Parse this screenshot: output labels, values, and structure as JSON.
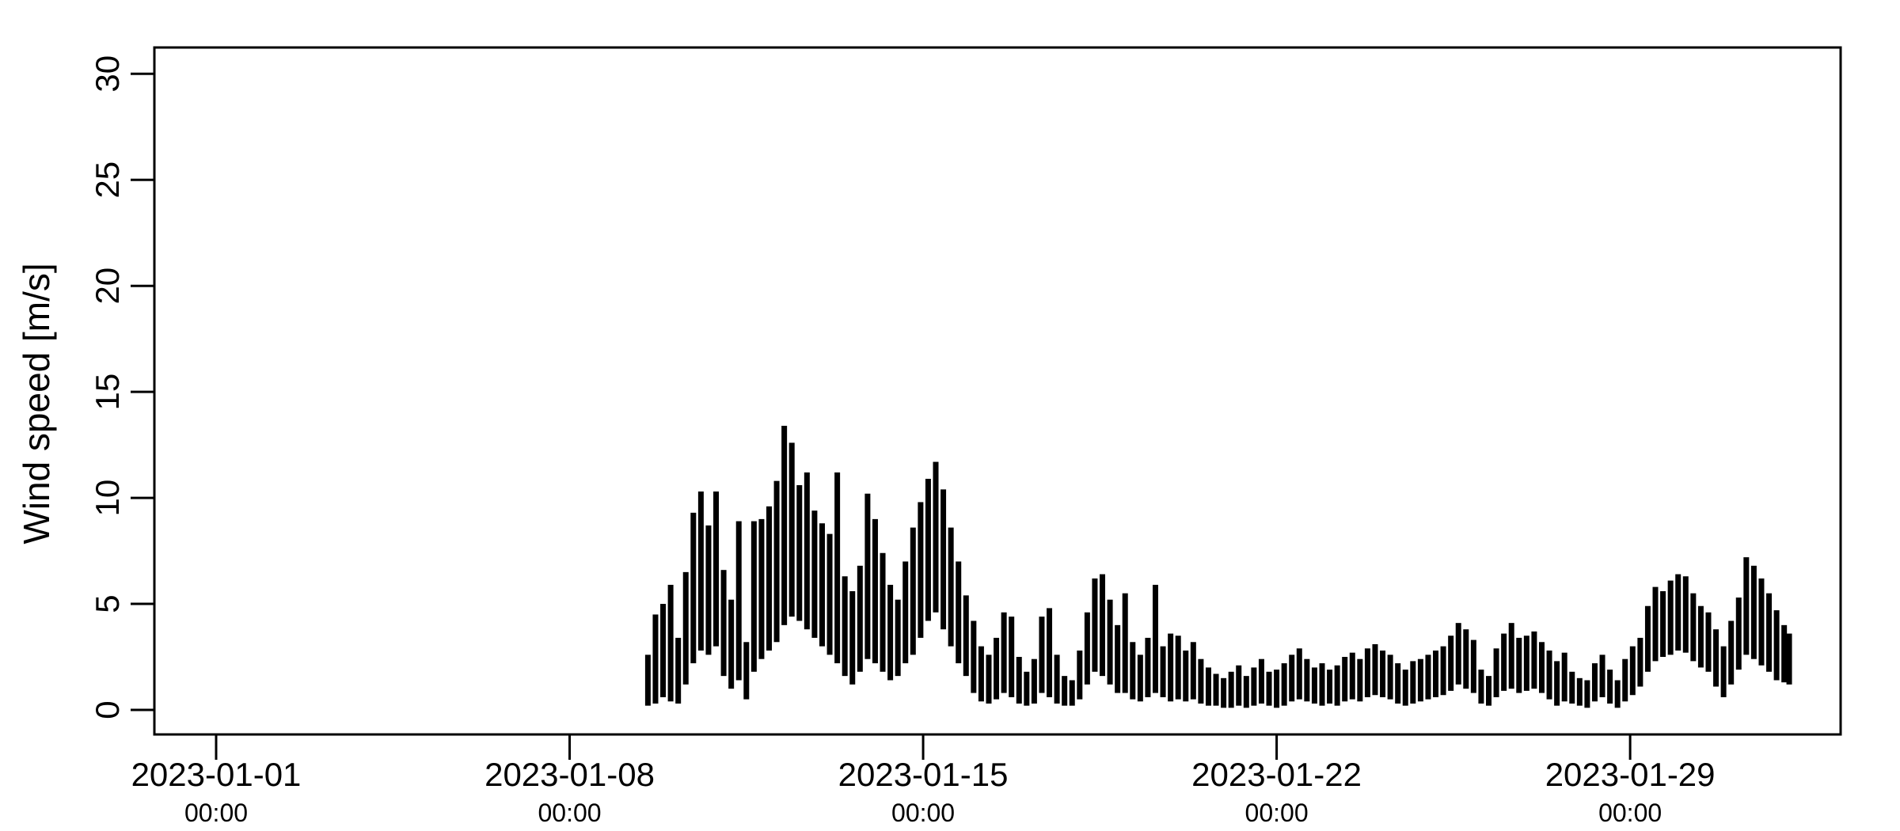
{
  "figure": {
    "ylab": "Wind speed [m/s]",
    "background": "#ffffff",
    "line_color": "#000000",
    "y_tick_labels": [
      "0",
      "5",
      "10",
      "15",
      "20",
      "25",
      "30"
    ],
    "x_ticks": [
      {
        "date": "2023-01-01",
        "time": "00:00"
      },
      {
        "date": "2023-01-08",
        "time": "00:00"
      },
      {
        "date": "2023-01-15",
        "time": "00:00"
      },
      {
        "date": "2023-01-22",
        "time": "00:00"
      },
      {
        "date": "2023-01-29",
        "time": "00:00"
      }
    ]
  },
  "chart_data": {
    "type": "line",
    "title": "",
    "xlabel": "",
    "ylabel": "Wind speed [m/s]",
    "x_axis_origin": "2023-01-01 00:00",
    "x_unit": "days since 2023-01-01 00:00",
    "x_tick_days": [
      0,
      7,
      14,
      21,
      28
    ],
    "x_tick_labels": [
      "2023-01-01 00:00",
      "2023-01-08 00:00",
      "2023-01-15 00:00",
      "2023-01-22 00:00",
      "2023-01-29 00:00"
    ],
    "y_ticks": [
      0,
      5,
      10,
      15,
      20,
      25,
      30
    ],
    "ylim": [
      0,
      30
    ],
    "xlim_days": [
      0,
      31
    ],
    "grid": false,
    "legend": null,
    "data_start_day": 8.55,
    "data_end_day": 31.15,
    "notable_peaks_day_value": [
      [
        9.6,
        10.3
      ],
      [
        11.29,
        13.4
      ],
      [
        14.25,
        11.7
      ],
      [
        17.5,
        6.4
      ],
      [
        18.65,
        5.9
      ],
      [
        24.6,
        4.1
      ],
      [
        28.95,
        6.4
      ],
      [
        30.35,
        7.2
      ]
    ],
    "envelope_day_lo_hi": [
      [
        8.55,
        0.2,
        2.6
      ],
      [
        8.7,
        0.3,
        4.5
      ],
      [
        8.85,
        0.6,
        5.0
      ],
      [
        9.0,
        0.4,
        5.9
      ],
      [
        9.15,
        0.3,
        3.4
      ],
      [
        9.3,
        1.2,
        6.5
      ],
      [
        9.45,
        2.2,
        9.3
      ],
      [
        9.6,
        2.8,
        10.3
      ],
      [
        9.75,
        2.6,
        8.7
      ],
      [
        9.9,
        3.0,
        10.3
      ],
      [
        10.05,
        1.6,
        6.6
      ],
      [
        10.2,
        1.0,
        5.2
      ],
      [
        10.35,
        1.4,
        8.9
      ],
      [
        10.5,
        0.5,
        3.2
      ],
      [
        10.65,
        1.8,
        8.9
      ],
      [
        10.8,
        2.4,
        9.0
      ],
      [
        10.95,
        2.8,
        9.6
      ],
      [
        11.1,
        3.2,
        10.8
      ],
      [
        11.25,
        4.0,
        13.4
      ],
      [
        11.4,
        4.4,
        12.6
      ],
      [
        11.55,
        4.2,
        10.6
      ],
      [
        11.7,
        3.8,
        11.2
      ],
      [
        11.85,
        3.4,
        9.4
      ],
      [
        12.0,
        3.0,
        8.8
      ],
      [
        12.15,
        2.6,
        8.3
      ],
      [
        12.3,
        2.2,
        11.2
      ],
      [
        12.45,
        1.6,
        6.3
      ],
      [
        12.6,
        1.2,
        5.6
      ],
      [
        12.75,
        1.8,
        6.8
      ],
      [
        12.9,
        2.4,
        10.2
      ],
      [
        13.05,
        2.2,
        9.0
      ],
      [
        13.2,
        1.8,
        7.4
      ],
      [
        13.35,
        1.4,
        5.9
      ],
      [
        13.5,
        1.6,
        5.2
      ],
      [
        13.65,
        2.2,
        7.0
      ],
      [
        13.8,
        2.6,
        8.6
      ],
      [
        13.95,
        3.4,
        9.8
      ],
      [
        14.1,
        4.2,
        10.9
      ],
      [
        14.25,
        4.6,
        11.7
      ],
      [
        14.4,
        3.8,
        10.4
      ],
      [
        14.55,
        3.0,
        8.6
      ],
      [
        14.7,
        2.2,
        7.0
      ],
      [
        14.85,
        1.6,
        5.4
      ],
      [
        15.0,
        0.8,
        4.2
      ],
      [
        15.15,
        0.4,
        3.0
      ],
      [
        15.3,
        0.3,
        2.6
      ],
      [
        15.45,
        0.5,
        3.4
      ],
      [
        15.6,
        0.8,
        4.6
      ],
      [
        15.75,
        0.6,
        4.4
      ],
      [
        15.9,
        0.3,
        2.5
      ],
      [
        16.05,
        0.2,
        1.8
      ],
      [
        16.2,
        0.3,
        2.4
      ],
      [
        16.35,
        0.8,
        4.4
      ],
      [
        16.5,
        0.6,
        4.8
      ],
      [
        16.65,
        0.3,
        2.6
      ],
      [
        16.8,
        0.2,
        1.6
      ],
      [
        16.95,
        0.2,
        1.4
      ],
      [
        17.1,
        0.5,
        2.8
      ],
      [
        17.25,
        1.2,
        4.6
      ],
      [
        17.4,
        1.8,
        6.2
      ],
      [
        17.55,
        1.6,
        6.4
      ],
      [
        17.7,
        1.2,
        5.2
      ],
      [
        17.85,
        0.8,
        4.0
      ],
      [
        18.0,
        0.8,
        5.5
      ],
      [
        18.15,
        0.5,
        3.2
      ],
      [
        18.3,
        0.4,
        2.6
      ],
      [
        18.45,
        0.6,
        3.4
      ],
      [
        18.6,
        0.8,
        5.9
      ],
      [
        18.75,
        0.6,
        3.0
      ],
      [
        18.9,
        0.4,
        3.6
      ],
      [
        19.05,
        0.5,
        3.5
      ],
      [
        19.2,
        0.4,
        2.8
      ],
      [
        19.35,
        0.5,
        3.2
      ],
      [
        19.5,
        0.3,
        2.4
      ],
      [
        19.65,
        0.2,
        2.0
      ],
      [
        19.8,
        0.2,
        1.7
      ],
      [
        19.95,
        0.1,
        1.5
      ],
      [
        20.1,
        0.1,
        1.8
      ],
      [
        20.25,
        0.2,
        2.1
      ],
      [
        20.4,
        0.1,
        1.6
      ],
      [
        20.55,
        0.2,
        2.0
      ],
      [
        20.7,
        0.3,
        2.4
      ],
      [
        20.85,
        0.2,
        1.8
      ],
      [
        21.0,
        0.1,
        1.9
      ],
      [
        21.15,
        0.2,
        2.2
      ],
      [
        21.3,
        0.4,
        2.6
      ],
      [
        21.45,
        0.5,
        2.9
      ],
      [
        21.6,
        0.4,
        2.4
      ],
      [
        21.75,
        0.3,
        2.0
      ],
      [
        21.9,
        0.2,
        2.2
      ],
      [
        22.05,
        0.3,
        1.9
      ],
      [
        22.2,
        0.2,
        2.1
      ],
      [
        22.35,
        0.4,
        2.5
      ],
      [
        22.5,
        0.5,
        2.7
      ],
      [
        22.65,
        0.4,
        2.4
      ],
      [
        22.8,
        0.6,
        2.9
      ],
      [
        22.95,
        0.7,
        3.1
      ],
      [
        23.1,
        0.6,
        2.8
      ],
      [
        23.25,
        0.5,
        2.6
      ],
      [
        23.4,
        0.3,
        2.2
      ],
      [
        23.55,
        0.2,
        1.9
      ],
      [
        23.7,
        0.3,
        2.3
      ],
      [
        23.85,
        0.4,
        2.4
      ],
      [
        24.0,
        0.5,
        2.6
      ],
      [
        24.15,
        0.6,
        2.8
      ],
      [
        24.3,
        0.7,
        3.0
      ],
      [
        24.45,
        0.9,
        3.5
      ],
      [
        24.6,
        1.2,
        4.1
      ],
      [
        24.75,
        1.0,
        3.8
      ],
      [
        24.9,
        0.8,
        3.3
      ],
      [
        25.05,
        0.3,
        1.9
      ],
      [
        25.2,
        0.2,
        1.6
      ],
      [
        25.35,
        0.6,
        2.9
      ],
      [
        25.5,
        0.9,
        3.6
      ],
      [
        25.65,
        1.0,
        4.1
      ],
      [
        25.8,
        0.8,
        3.4
      ],
      [
        25.95,
        0.9,
        3.5
      ],
      [
        26.1,
        1.0,
        3.7
      ],
      [
        26.25,
        0.8,
        3.2
      ],
      [
        26.4,
        0.5,
        2.8
      ],
      [
        26.55,
        0.2,
        2.3
      ],
      [
        26.7,
        0.4,
        2.7
      ],
      [
        26.85,
        0.3,
        1.8
      ],
      [
        27.0,
        0.2,
        1.5
      ],
      [
        27.15,
        0.1,
        1.4
      ],
      [
        27.3,
        0.4,
        2.2
      ],
      [
        27.45,
        0.6,
        2.6
      ],
      [
        27.6,
        0.3,
        1.9
      ],
      [
        27.75,
        0.1,
        1.4
      ],
      [
        27.9,
        0.4,
        2.4
      ],
      [
        28.05,
        0.7,
        3.0
      ],
      [
        28.2,
        1.1,
        3.4
      ],
      [
        28.35,
        1.8,
        4.9
      ],
      [
        28.5,
        2.3,
        5.8
      ],
      [
        28.65,
        2.5,
        5.6
      ],
      [
        28.8,
        2.6,
        6.1
      ],
      [
        28.95,
        2.8,
        6.4
      ],
      [
        29.1,
        2.7,
        6.3
      ],
      [
        29.25,
        2.3,
        5.5
      ],
      [
        29.4,
        2.0,
        4.9
      ],
      [
        29.55,
        1.8,
        4.6
      ],
      [
        29.7,
        1.1,
        3.8
      ],
      [
        29.85,
        0.6,
        3.0
      ],
      [
        30.0,
        1.2,
        4.2
      ],
      [
        30.15,
        1.9,
        5.3
      ],
      [
        30.3,
        2.6,
        7.2
      ],
      [
        30.45,
        2.4,
        6.8
      ],
      [
        30.6,
        2.1,
        6.2
      ],
      [
        30.75,
        1.8,
        5.5
      ],
      [
        30.9,
        1.4,
        4.7
      ],
      [
        31.05,
        1.3,
        4.0
      ],
      [
        31.15,
        1.2,
        3.6
      ]
    ]
  }
}
